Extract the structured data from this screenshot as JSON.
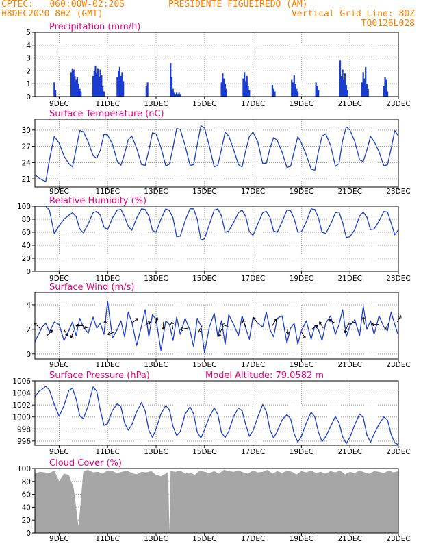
{
  "header": {
    "line1_left": "CPTEC:   060:00W-02:20S",
    "line1_right": "PRESIDENTE FIGUEIREDO (AM)",
    "line2_left": "08DEC2020 80Z (GMT)",
    "line2_right": "Vertical Grid Line: 80Z",
    "line3_right": "TQ0126L028"
  },
  "colors": {
    "header": "#ff7f00",
    "titles": "#e8007d",
    "series": "#1a3ccf",
    "bars": "#1a3ccf",
    "cloud": "#a6a6a6"
  },
  "x_axis": {
    "ticks": [
      "9DEC",
      "11DEC",
      "13DEC",
      "15DEC",
      "17DEC",
      "19DEC",
      "21DEC",
      "23DEC"
    ],
    "tick_days": [
      9,
      11,
      13,
      15,
      17,
      19,
      21,
      23
    ],
    "range_days": [
      8.0,
      23.0
    ]
  },
  "chart_data": [
    {
      "type": "bar",
      "title": "Precipitation (mm/h)",
      "ylim": [
        0,
        5
      ],
      "yticks": [
        0,
        1,
        2,
        3,
        4,
        5
      ],
      "grid": true,
      "x": [
        8.8,
        8.85,
        9.5,
        9.55,
        9.6,
        9.65,
        9.7,
        9.75,
        9.8,
        9.85,
        9.9,
        10.4,
        10.45,
        10.5,
        10.55,
        10.6,
        10.65,
        10.7,
        10.75,
        10.8,
        10.85,
        11.4,
        11.45,
        11.5,
        11.55,
        11.6,
        11.65,
        12.6,
        12.65,
        13.6,
        13.65,
        13.7,
        13.75,
        13.8,
        13.85,
        13.9,
        13.95,
        14.0,
        15.7,
        15.75,
        15.8,
        15.85,
        15.9,
        16.6,
        16.65,
        16.7,
        16.75,
        16.8,
        16.85,
        17.8,
        17.85,
        17.9,
        18.6,
        18.65,
        18.7,
        18.75,
        18.8,
        18.85,
        19.6,
        19.65,
        19.7,
        20.6,
        20.65,
        20.7,
        20.75,
        20.8,
        20.85,
        20.9,
        21.5,
        21.55,
        21.6,
        21.65,
        21.7,
        21.75,
        22.4,
        22.45,
        22.5,
        22.55
      ],
      "values": [
        1.1,
        0.5,
        1.9,
        2.2,
        2.1,
        1.6,
        1.3,
        1.5,
        1.0,
        0.6,
        0.4,
        1.6,
        2.0,
        2.4,
        1.8,
        2.2,
        1.5,
        2.1,
        1.7,
        0.8,
        0.4,
        1.5,
        2.0,
        2.3,
        1.6,
        1.9,
        1.2,
        0.8,
        1.1,
        2.6,
        1.5,
        0.6,
        0.3,
        0.2,
        0.3,
        0.2,
        0.3,
        0.2,
        1.1,
        1.8,
        1.4,
        1.0,
        0.6,
        1.4,
        1.9,
        1.2,
        1.6,
        0.8,
        0.5,
        0.9,
        0.6,
        0.4,
        1.3,
        1.1,
        1.7,
        1.0,
        0.6,
        0.4,
        1.1,
        0.8,
        0.5,
        2.8,
        1.6,
        2.1,
        1.3,
        1.8,
        0.9,
        0.5,
        1.1,
        1.9,
        1.4,
        2.3,
        1.0,
        0.6,
        0.8,
        1.5,
        1.3,
        0.4
      ]
    },
    {
      "type": "line",
      "title": "Surface Temperature (nC)",
      "ylim": [
        19.5,
        32.0
      ],
      "yticks": [
        21,
        24,
        27,
        30
      ],
      "grid": true,
      "x": [
        8.0,
        8.15,
        8.3,
        8.45,
        8.6,
        8.8,
        9.0,
        9.2,
        9.4,
        9.55,
        9.7,
        9.85,
        10.0,
        10.2,
        10.4,
        10.55,
        10.7,
        10.85,
        11.0,
        11.2,
        11.4,
        11.55,
        11.7,
        11.85,
        12.0,
        12.2,
        12.4,
        12.55,
        12.7,
        12.85,
        13.0,
        13.2,
        13.4,
        13.55,
        13.7,
        13.85,
        14.0,
        14.2,
        14.4,
        14.55,
        14.7,
        14.85,
        15.0,
        15.2,
        15.4,
        15.55,
        15.7,
        15.85,
        16.0,
        16.2,
        16.4,
        16.55,
        16.7,
        16.85,
        17.0,
        17.2,
        17.4,
        17.55,
        17.7,
        17.85,
        18.0,
        18.2,
        18.4,
        18.55,
        18.7,
        18.85,
        19.0,
        19.2,
        19.4,
        19.55,
        19.7,
        19.85,
        20.0,
        20.2,
        20.4,
        20.55,
        20.7,
        20.85,
        21.0,
        21.2,
        21.4,
        21.55,
        21.7,
        21.85,
        22.0,
        22.2,
        22.4,
        22.55,
        22.7,
        22.85,
        23.0
      ],
      "values": [
        21.8,
        21.2,
        20.8,
        20.5,
        24.5,
        28.8,
        27.6,
        25.2,
        23.8,
        23.2,
        26.5,
        29.9,
        29.7,
        27.8,
        25.3,
        24.8,
        26.3,
        29.2,
        29.1,
        27.4,
        24.2,
        23.5,
        25.6,
        28.2,
        28.9,
        26.6,
        23.6,
        23.5,
        26.2,
        29.5,
        29.3,
        26.8,
        23.4,
        23.7,
        26.8,
        30.3,
        30.1,
        27.1,
        23.5,
        23.6,
        27.3,
        30.8,
        30.4,
        27.0,
        23.2,
        23.5,
        26.5,
        29.6,
        28.9,
        26.4,
        23.6,
        23.2,
        26.2,
        28.8,
        29.6,
        27.8,
        23.8,
        23.9,
        26.6,
        28.6,
        28.1,
        25.9,
        23.1,
        23.3,
        26.1,
        28.8,
        27.6,
        25.4,
        22.8,
        22.6,
        26.0,
        28.9,
        29.3,
        27.2,
        23.3,
        23.8,
        28.1,
        30.6,
        30.0,
        27.9,
        24.5,
        24.2,
        26.3,
        28.8,
        27.9,
        26.0,
        23.4,
        23.6,
        26.6,
        29.9,
        28.9
      ]
    },
    {
      "type": "line",
      "title": "Relative Humidity (%)",
      "ylim": [
        0,
        100
      ],
      "yticks": [
        0,
        20,
        40,
        60,
        80,
        100
      ],
      "grid": true,
      "x": [
        8.0,
        8.15,
        8.3,
        8.45,
        8.6,
        8.8,
        9.0,
        9.2,
        9.4,
        9.55,
        9.7,
        9.85,
        10.0,
        10.2,
        10.4,
        10.55,
        10.7,
        10.85,
        11.0,
        11.2,
        11.4,
        11.55,
        11.7,
        11.85,
        12.0,
        12.2,
        12.4,
        12.55,
        12.7,
        12.85,
        13.0,
        13.2,
        13.4,
        13.55,
        13.7,
        13.85,
        14.0,
        14.2,
        14.4,
        14.55,
        14.7,
        14.85,
        15.0,
        15.2,
        15.4,
        15.55,
        15.7,
        15.85,
        16.0,
        16.2,
        16.4,
        16.55,
        16.7,
        16.85,
        17.0,
        17.2,
        17.4,
        17.55,
        17.7,
        17.85,
        18.0,
        18.2,
        18.4,
        18.55,
        18.7,
        18.85,
        19.0,
        19.2,
        19.4,
        19.55,
        19.7,
        19.85,
        20.0,
        20.2,
        20.4,
        20.55,
        20.7,
        20.85,
        21.0,
        21.2,
        21.4,
        21.55,
        21.7,
        21.85,
        22.0,
        22.2,
        22.4,
        22.55,
        22.7,
        22.85,
        23.0
      ],
      "values": [
        100,
        100,
        100,
        100,
        94,
        58,
        70,
        80,
        86,
        90,
        84,
        65,
        59,
        73,
        90,
        92,
        86,
        68,
        64,
        82,
        94,
        95,
        84,
        69,
        63,
        82,
        96,
        95,
        85,
        63,
        60,
        80,
        96,
        93,
        82,
        53,
        54,
        78,
        96,
        96,
        80,
        48,
        50,
        72,
        94,
        96,
        85,
        60,
        62,
        75,
        90,
        94,
        84,
        61,
        55,
        73,
        90,
        92,
        83,
        62,
        60,
        76,
        94,
        93,
        81,
        60,
        61,
        76,
        96,
        95,
        82,
        60,
        58,
        72,
        90,
        91,
        75,
        52,
        53,
        64,
        85,
        91,
        83,
        64,
        65,
        77,
        92,
        91,
        74,
        56,
        64
      ]
    },
    {
      "type": "line",
      "title": "Surface Wind (m/s)",
      "ylim": [
        -0.4,
        5.0
      ],
      "yticks": [
        0,
        2,
        4
      ],
      "grid": true,
      "x": [
        8.0,
        8.15,
        8.3,
        8.45,
        8.6,
        8.8,
        9.0,
        9.2,
        9.4,
        9.55,
        9.7,
        9.85,
        10.0,
        10.2,
        10.4,
        10.55,
        10.7,
        10.85,
        11.0,
        11.2,
        11.4,
        11.55,
        11.7,
        11.85,
        12.0,
        12.2,
        12.4,
        12.55,
        12.7,
        12.85,
        13.0,
        13.2,
        13.4,
        13.55,
        13.7,
        13.85,
        14.0,
        14.2,
        14.4,
        14.55,
        14.7,
        14.85,
        15.0,
        15.2,
        15.4,
        15.55,
        15.7,
        15.85,
        16.0,
        16.2,
        16.4,
        16.55,
        16.7,
        16.85,
        17.0,
        17.2,
        17.4,
        17.55,
        17.7,
        17.85,
        18.0,
        18.2,
        18.4,
        18.55,
        18.7,
        18.85,
        19.0,
        19.2,
        19.4,
        19.55,
        19.7,
        19.85,
        20.0,
        20.2,
        20.4,
        20.55,
        20.7,
        20.85,
        21.0,
        21.2,
        21.4,
        21.55,
        21.7,
        21.85,
        22.0,
        22.2,
        22.4,
        22.55,
        22.7,
        22.85,
        23.0
      ],
      "values": [
        1.0,
        1.6,
        2.2,
        2.5,
        1.8,
        2.6,
        2.4,
        1.1,
        1.9,
        2.6,
        1.5,
        2.9,
        2.2,
        1.7,
        3.0,
        2.1,
        2.5,
        1.6,
        4.3,
        1.3,
        2.0,
        2.7,
        1.4,
        3.4,
        2.6,
        0.7,
        2.3,
        3.6,
        1.4,
        3.2,
        2.8,
        0.3,
        2.7,
        2.4,
        1.1,
        3.0,
        1.6,
        2.9,
        1.9,
        0.6,
        2.9,
        2.3,
        0.1,
        2.2,
        3.3,
        1.4,
        2.7,
        0.8,
        3.2,
        2.4,
        1.5,
        3.1,
        2.1,
        1.2,
        3.0,
        2.5,
        2.2,
        3.4,
        2.0,
        1.4,
        2.9,
        3.1,
        0.9,
        2.1,
        2.5,
        0.8,
        1.9,
        2.7,
        1.2,
        2.3,
        2.0,
        1.1,
        2.5,
        3.1,
        1.6,
        2.4,
        3.6,
        1.4,
        2.3,
        2.8,
        1.5,
        3.9,
        2.0,
        2.7,
        1.6,
        3.1,
        2.2,
        1.9,
        3.4,
        2.4,
        1.5
      ],
      "arrows_x": [
        8.2,
        8.5,
        9.2,
        9.6,
        10.0,
        10.3,
        10.9,
        11.3,
        12.0,
        12.5,
        12.95,
        13.3,
        13.7,
        14.3,
        14.9,
        15.7,
        16.0,
        16.7,
        17.2,
        17.8,
        18.4,
        19.0,
        19.4,
        19.9,
        20.4,
        20.9,
        21.2,
        21.6,
        22.2,
        22.6,
        22.95
      ],
      "arrows_v": [
        2.1,
        1.5,
        2.0,
        1.9,
        2.3,
        2.2,
        2.1,
        1.8,
        2.5,
        2.3,
        2.4,
        2.6,
        2.0,
        2.1,
        2.3,
        2.0,
        2.2,
        2.2,
        2.5,
        2.3,
        2.2,
        1.8,
        2.0,
        2.1,
        2.5,
        2.3,
        2.6,
        2.4,
        2.4,
        2.5,
        2.6
      ],
      "arrows_dir": [
        135,
        45,
        300,
        250,
        180,
        190,
        90,
        200,
        40,
        30,
        70,
        270,
        100,
        190,
        240,
        250,
        160,
        110,
        130,
        60,
        280,
        300,
        30,
        120,
        150,
        250,
        200,
        100,
        180,
        240,
        60
      ]
    },
    {
      "type": "line",
      "title": "Surface Pressure (hPa)",
      "annotation": "Model Altitude: 79.0582 m",
      "ylim": [
        995.3,
        1006.0
      ],
      "yticks": [
        996,
        998,
        1000,
        1002,
        1004,
        1006
      ],
      "grid": true,
      "x": [
        8.0,
        8.15,
        8.3,
        8.45,
        8.6,
        8.8,
        9.0,
        9.2,
        9.4,
        9.55,
        9.7,
        9.85,
        10.0,
        10.2,
        10.4,
        10.55,
        10.7,
        10.85,
        11.0,
        11.2,
        11.4,
        11.55,
        11.7,
        11.85,
        12.0,
        12.2,
        12.4,
        12.55,
        12.7,
        12.85,
        13.0,
        13.2,
        13.4,
        13.55,
        13.7,
        13.85,
        14.0,
        14.2,
        14.4,
        14.55,
        14.7,
        14.85,
        15.0,
        15.2,
        15.4,
        15.55,
        15.7,
        15.85,
        16.0,
        16.2,
        16.4,
        16.55,
        16.7,
        16.85,
        17.0,
        17.2,
        17.4,
        17.55,
        17.7,
        17.85,
        18.0,
        18.2,
        18.4,
        18.55,
        18.7,
        18.85,
        19.0,
        19.2,
        19.4,
        19.55,
        19.7,
        19.85,
        20.0,
        20.2,
        20.4,
        20.55,
        20.7,
        20.85,
        21.0,
        21.2,
        21.4,
        21.55,
        21.7,
        21.85,
        22.0,
        22.2,
        22.4,
        22.55,
        22.7,
        22.85,
        23.0
      ],
      "values": [
        1003.3,
        1004.2,
        1004.6,
        1005.1,
        1004.5,
        1002.1,
        1000.1,
        1001.9,
        1004.4,
        1004.8,
        1003.0,
        1000.2,
        999.7,
        1001.9,
        1005.0,
        1004.3,
        1001.1,
        998.6,
        998.9,
        1001.1,
        1002.2,
        1001.7,
        999.0,
        997.8,
        998.7,
        1000.9,
        1002.4,
        1001.0,
        997.8,
        996.6,
        998.0,
        1000.5,
        1001.9,
        1001.2,
        998.4,
        996.9,
        997.6,
        1000.5,
        1001.7,
        1000.5,
        997.5,
        996.5,
        997.9,
        1000.0,
        1001.5,
        1000.4,
        997.4,
        996.6,
        997.6,
        1000.1,
        1001.5,
        1001.0,
        998.7,
        996.8,
        997.7,
        1000.0,
        1002.1,
        1000.9,
        997.9,
        996.5,
        997.6,
        999.5,
        1000.4,
        999.7,
        997.2,
        995.8,
        996.8,
        999.0,
        1000.8,
        1000.0,
        997.5,
        995.9,
        996.7,
        998.4,
        1000.1,
        999.0,
        996.7,
        995.6,
        996.6,
        998.7,
        1000.5,
        999.9,
        997.0,
        995.8,
        997.2,
        998.8,
        1000.0,
        999.5,
        997.1,
        995.7,
        995.4
      ]
    },
    {
      "type": "area",
      "title": "Cloud Cover (%)",
      "ylim": [
        0,
        100
      ],
      "yticks": [
        0,
        20,
        40,
        60,
        80,
        100
      ],
      "grid": true,
      "x": [
        8.0,
        8.2,
        8.4,
        8.6,
        8.8,
        9.0,
        9.2,
        9.4,
        9.6,
        9.8,
        10.0,
        10.2,
        10.4,
        10.6,
        10.8,
        11.0,
        11.2,
        11.4,
        11.6,
        11.8,
        12.0,
        12.2,
        12.4,
        12.6,
        12.8,
        13.0,
        13.2,
        13.4,
        13.5,
        13.55,
        13.6,
        13.8,
        14.0,
        14.2,
        14.4,
        14.6,
        14.8,
        15.0,
        15.2,
        15.4,
        15.6,
        15.8,
        16.0,
        16.2,
        16.4,
        16.6,
        16.8,
        17.0,
        17.2,
        17.4,
        17.6,
        17.8,
        18.0,
        18.2,
        18.4,
        18.6,
        18.8,
        19.0,
        19.2,
        19.4,
        19.6,
        19.8,
        20.0,
        20.2,
        20.4,
        20.6,
        20.8,
        21.0,
        21.2,
        21.4,
        21.6,
        21.8,
        22.0,
        22.2,
        22.4,
        22.6,
        22.8,
        23.0
      ],
      "values": [
        92,
        95,
        94,
        93,
        97,
        80,
        92,
        90,
        70,
        10,
        96,
        98,
        94,
        95,
        92,
        97,
        96,
        93,
        95,
        97,
        93,
        91,
        95,
        94,
        96,
        90,
        88,
        92,
        95,
        2,
        96,
        95,
        97,
        92,
        94,
        90,
        97,
        95,
        93,
        96,
        92,
        98,
        96,
        95,
        97,
        94,
        92,
        97,
        94,
        95,
        98,
        92,
        96,
        93,
        97,
        95,
        91,
        96,
        94,
        97,
        93,
        95,
        92,
        96,
        94,
        97,
        91,
        95,
        93,
        97,
        94,
        92,
        96,
        95,
        93,
        97,
        94,
        96
      ]
    }
  ]
}
